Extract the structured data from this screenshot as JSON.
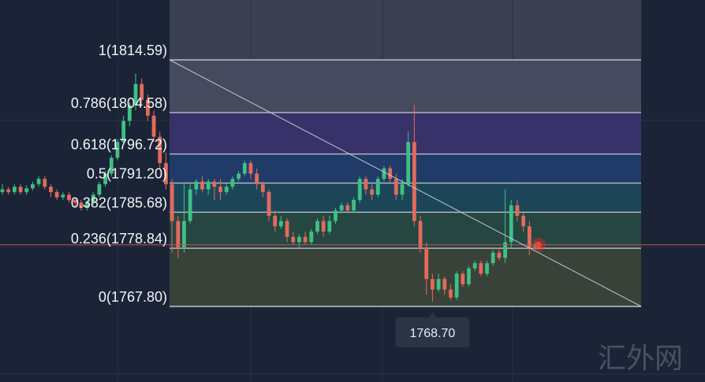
{
  "chart_data": {
    "type": "candlestick",
    "fib_levels": [
      {
        "ratio": "1",
        "price": 1814.59,
        "label": "1(1814.59)",
        "color": "#4a4f63"
      },
      {
        "ratio": "0.786",
        "price": 1804.58,
        "label": "0.786(1804.58)",
        "color": "#3c3470"
      },
      {
        "ratio": "0.618",
        "price": 1796.72,
        "label": "0.618(1796.72)",
        "color": "#213e6d"
      },
      {
        "ratio": "0.5",
        "price": 1791.2,
        "label": "0.5(1791.20)",
        "color": "#1d4a5c"
      },
      {
        "ratio": "0.382",
        "price": 1785.68,
        "label": "0.382(1785.68)",
        "color": "#274a43"
      },
      {
        "ratio": "0.236",
        "price": 1778.84,
        "label": "0.236(1778.84)",
        "color": "#3d4638"
      },
      {
        "ratio": "0",
        "price": 1767.8,
        "label": "0(1767.80)",
        "color": "#3e3545"
      }
    ],
    "current_price": 1779.5,
    "low_marker": {
      "price": 1768.7,
      "label": "1768.70"
    },
    "trendline": {
      "from_price": 1814.59,
      "to_price": 1767.8
    },
    "candles": [
      [
        1789.5,
        1790,
        1791,
        1789
      ],
      [
        1790,
        1789.5,
        1790.5,
        1789
      ],
      [
        1789.5,
        1790.5,
        1791,
        1789
      ],
      [
        1790.5,
        1789.5,
        1791,
        1789
      ],
      [
        1789.5,
        1790.2,
        1790.8,
        1789
      ],
      [
        1790.2,
        1791,
        1791.5,
        1789.8
      ],
      [
        1791,
        1792,
        1792.5,
        1790.5
      ],
      [
        1792,
        1790.5,
        1792.5,
        1790
      ],
      [
        1790.5,
        1789.5,
        1791,
        1788.5
      ],
      [
        1789.5,
        1788.5,
        1790,
        1788
      ],
      [
        1788.5,
        1789,
        1789.5,
        1788
      ],
      [
        1789,
        1788,
        1789.5,
        1787.5
      ],
      [
        1788,
        1787.5,
        1788.5,
        1786.5
      ],
      [
        1787.5,
        1786.5,
        1788,
        1786
      ],
      [
        1786.5,
        1787.5,
        1788,
        1786
      ],
      [
        1787.5,
        1789,
        1789.5,
        1787
      ],
      [
        1789,
        1791,
        1791.5,
        1788.5
      ],
      [
        1791,
        1793,
        1793.5,
        1790.5
      ],
      [
        1793,
        1796,
        1796.5,
        1792.5
      ],
      [
        1796,
        1799,
        1799.5,
        1795.5
      ],
      [
        1799,
        1803,
        1804,
        1798.5
      ],
      [
        1803,
        1806,
        1806.5,
        1802
      ],
      [
        1806,
        1810,
        1812,
        1805
      ],
      [
        1810,
        1807,
        1811,
        1806
      ],
      [
        1807,
        1804,
        1808,
        1803
      ],
      [
        1804,
        1800,
        1805,
        1799
      ],
      [
        1800,
        1795,
        1801,
        1794
      ],
      [
        1795,
        1791,
        1797,
        1790
      ],
      [
        1791,
        1784,
        1792,
        1778
      ],
      [
        1784,
        1779,
        1785,
        1777
      ],
      [
        1779,
        1784,
        1791,
        1778
      ],
      [
        1784,
        1790,
        1791,
        1783.5
      ],
      [
        1790,
        1791.5,
        1792,
        1789
      ],
      [
        1791.5,
        1790,
        1792.5,
        1789.5
      ],
      [
        1790,
        1791.5,
        1792,
        1789
      ],
      [
        1791.5,
        1790.5,
        1792,
        1788
      ],
      [
        1790.5,
        1789.5,
        1792,
        1788
      ],
      [
        1789.5,
        1790.5,
        1791,
        1789
      ],
      [
        1790.5,
        1792,
        1792.5,
        1790
      ],
      [
        1792,
        1793,
        1793.5,
        1791.5
      ],
      [
        1793,
        1795,
        1795.5,
        1792.5
      ],
      [
        1795,
        1793,
        1795.5,
        1792
      ],
      [
        1793,
        1791,
        1794,
        1790
      ],
      [
        1791,
        1789.5,
        1791.5,
        1788.5
      ],
      [
        1789.5,
        1785,
        1790,
        1784
      ],
      [
        1785,
        1783,
        1786,
        1782
      ],
      [
        1783,
        1784,
        1785,
        1782.5
      ],
      [
        1784,
        1781,
        1784.5,
        1780
      ],
      [
        1781,
        1780,
        1782,
        1779.5
      ],
      [
        1780,
        1781,
        1781.5,
        1779
      ],
      [
        1781,
        1780,
        1782,
        1779.5
      ],
      [
        1780,
        1782,
        1782.5,
        1779.5
      ],
      [
        1782,
        1784,
        1784.5,
        1781.5
      ],
      [
        1784,
        1782,
        1785,
        1781
      ],
      [
        1782,
        1784,
        1785,
        1781.5
      ],
      [
        1784,
        1786,
        1786.5,
        1783.5
      ],
      [
        1786,
        1787,
        1787.5,
        1785.5
      ],
      [
        1787,
        1786,
        1787.5,
        1785.5
      ],
      [
        1786,
        1788,
        1788.5,
        1785.5
      ],
      [
        1788,
        1792,
        1792.5,
        1787.5
      ],
      [
        1792,
        1790,
        1792.5,
        1789
      ],
      [
        1790,
        1789,
        1791,
        1788
      ],
      [
        1789,
        1792,
        1792.5,
        1788.5
      ],
      [
        1792,
        1794,
        1794.5,
        1791.5
      ],
      [
        1794,
        1792,
        1794.5,
        1791
      ],
      [
        1792,
        1789,
        1793,
        1788
      ],
      [
        1789,
        1791,
        1792,
        1788
      ],
      [
        1791,
        1799,
        1801,
        1790.5
      ],
      [
        1799,
        1784,
        1806,
        1783
      ],
      [
        1784,
        1779,
        1785,
        1778
      ],
      [
        1779,
        1773,
        1780,
        1770
      ],
      [
        1773,
        1771,
        1774,
        1768.7
      ],
      [
        1771,
        1773,
        1774,
        1770.5
      ],
      [
        1773,
        1771,
        1773.5,
        1770
      ],
      [
        1771,
        1769.5,
        1772,
        1769
      ],
      [
        1769.5,
        1774,
        1774.5,
        1769
      ],
      [
        1774,
        1772,
        1774.5,
        1771.5
      ],
      [
        1772,
        1775,
        1775.5,
        1771.5
      ],
      [
        1775,
        1776,
        1776.5,
        1774.5
      ],
      [
        1776,
        1774,
        1776.5,
        1773.5
      ],
      [
        1774,
        1776,
        1776.5,
        1773.5
      ],
      [
        1776,
        1778,
        1778.5,
        1775.5
      ],
      [
        1778,
        1777,
        1779,
        1776.5
      ],
      [
        1777,
        1780,
        1790,
        1776
      ],
      [
        1780,
        1787,
        1788,
        1779
      ],
      [
        1787,
        1785,
        1788,
        1784
      ],
      [
        1785,
        1783,
        1785.5,
        1782
      ],
      [
        1783,
        1779,
        1784,
        1777.5
      ],
      [
        1779,
        1779.5,
        1780,
        1778.5
      ]
    ]
  },
  "watermark": {
    "text": "汇外网"
  }
}
